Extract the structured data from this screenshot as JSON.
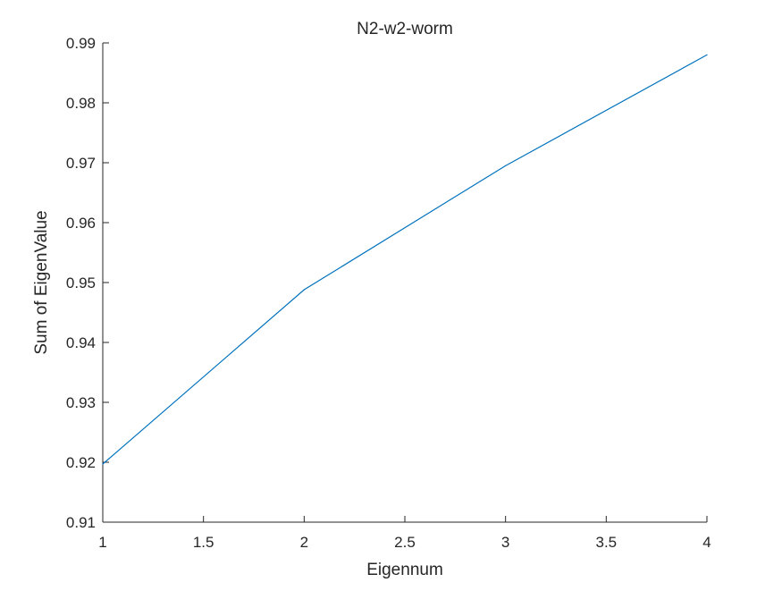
{
  "chart_data": {
    "type": "line",
    "title": "N2-w2-worm",
    "xlabel": "Eigennum",
    "ylabel": "Sum of EigenValue",
    "xlim": [
      1,
      4
    ],
    "ylim": [
      0.91,
      0.99
    ],
    "xticks": [
      "1",
      "1.5",
      "2",
      "2.5",
      "3",
      "3.5",
      "4"
    ],
    "yticks": [
      "0.91",
      "0.92",
      "0.93",
      "0.94",
      "0.95",
      "0.96",
      "0.97",
      "0.98",
      "0.99"
    ],
    "grid": false,
    "series": [
      {
        "x": [
          1,
          2,
          3,
          4
        ],
        "y": [
          0.9197,
          0.9488,
          0.9695,
          0.988
        ],
        "color": "#0072BD"
      }
    ]
  }
}
